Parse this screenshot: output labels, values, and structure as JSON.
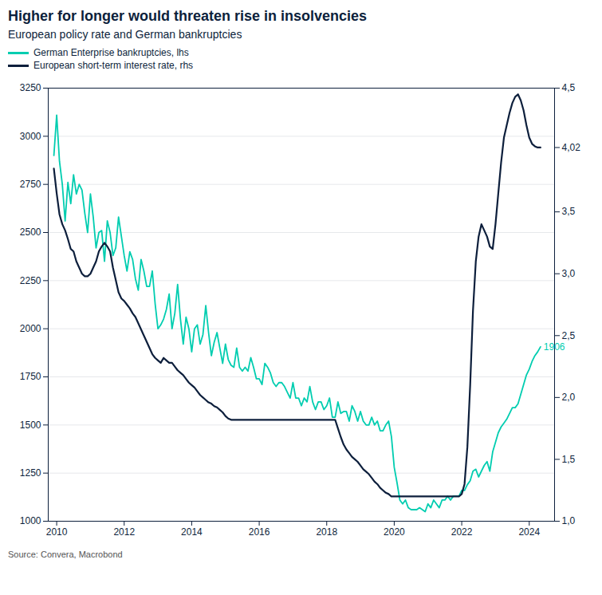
{
  "chart_data": {
    "type": "line",
    "title": "Higher for longer would threaten rise in insolvencies",
    "subtitle": "European policy rate and German bankruptcies",
    "source": "Source: Convera, Macrobond",
    "x": [
      2009.917,
      2010.0,
      2010.083,
      2010.167,
      2010.25,
      2010.333,
      2010.417,
      2010.5,
      2010.583,
      2010.667,
      2010.75,
      2010.833,
      2010.917,
      2011.0,
      2011.083,
      2011.167,
      2011.25,
      2011.333,
      2011.417,
      2011.5,
      2011.583,
      2011.667,
      2011.75,
      2011.833,
      2011.917,
      2012.0,
      2012.083,
      2012.167,
      2012.25,
      2012.333,
      2012.417,
      2012.5,
      2012.583,
      2012.667,
      2012.75,
      2012.833,
      2012.917,
      2013.0,
      2013.083,
      2013.167,
      2013.25,
      2013.333,
      2013.417,
      2013.5,
      2013.583,
      2013.667,
      2013.75,
      2013.833,
      2013.917,
      2014.0,
      2014.083,
      2014.167,
      2014.25,
      2014.333,
      2014.417,
      2014.5,
      2014.583,
      2014.667,
      2014.75,
      2014.833,
      2014.917,
      2015.0,
      2015.083,
      2015.167,
      2015.25,
      2015.333,
      2015.417,
      2015.5,
      2015.583,
      2015.667,
      2015.75,
      2015.833,
      2015.917,
      2016.0,
      2016.083,
      2016.167,
      2016.25,
      2016.333,
      2016.417,
      2016.5,
      2016.583,
      2016.667,
      2016.75,
      2016.833,
      2016.917,
      2017.0,
      2017.083,
      2017.167,
      2017.25,
      2017.333,
      2017.417,
      2017.5,
      2017.583,
      2017.667,
      2017.75,
      2017.833,
      2017.917,
      2018.0,
      2018.083,
      2018.167,
      2018.25,
      2018.333,
      2018.417,
      2018.5,
      2018.583,
      2018.667,
      2018.75,
      2018.833,
      2018.917,
      2019.0,
      2019.083,
      2019.167,
      2019.25,
      2019.333,
      2019.417,
      2019.5,
      2019.583,
      2019.667,
      2019.75,
      2019.833,
      2019.917,
      2020.0,
      2020.083,
      2020.167,
      2020.25,
      2020.333,
      2020.417,
      2020.5,
      2020.583,
      2020.667,
      2020.75,
      2020.833,
      2020.917,
      2021.0,
      2021.083,
      2021.167,
      2021.25,
      2021.333,
      2021.417,
      2021.5,
      2021.583,
      2021.667,
      2021.75,
      2021.833,
      2021.917,
      2022.0,
      2022.083,
      2022.167,
      2022.25,
      2022.333,
      2022.417,
      2022.5,
      2022.583,
      2022.667,
      2022.75,
      2022.833,
      2022.917,
      2023.0,
      2023.083,
      2023.167,
      2023.25,
      2023.333,
      2023.417,
      2023.5,
      2023.583,
      2023.667,
      2023.75,
      2023.833,
      2023.917,
      2024.0,
      2024.083,
      2024.167,
      2024.25,
      2024.333
    ],
    "series": [
      {
        "name": "German Enterprise bankruptcies, lhs",
        "color": "#00CDB0",
        "values": [
          2900,
          3110,
          2870,
          2750,
          2560,
          2760,
          2650,
          2800,
          2700,
          2750,
          2720,
          2600,
          2500,
          2700,
          2580,
          2420,
          2500,
          2510,
          2350,
          2560,
          2500,
          2380,
          2420,
          2580,
          2480,
          2380,
          2300,
          2400,
          2360,
          2260,
          2200,
          2360,
          2300,
          2220,
          2220,
          2300,
          2130,
          2000,
          2020,
          2050,
          2100,
          2180,
          2000,
          2080,
          2230,
          2050,
          1920,
          2060,
          2000,
          1880,
          2000,
          2020,
          1920,
          1970,
          2120,
          1980,
          1860,
          1930,
          1980,
          1900,
          1820,
          1920,
          1840,
          1810,
          1800,
          1900,
          1800,
          1780,
          1800,
          1780,
          1850,
          1800,
          1740,
          1740,
          1710,
          1820,
          1800,
          1770,
          1720,
          1700,
          1720,
          1720,
          1700,
          1670,
          1640,
          1720,
          1640,
          1640,
          1600,
          1640,
          1620,
          1700,
          1620,
          1580,
          1620,
          1620,
          1580,
          1600,
          1640,
          1540,
          1540,
          1620,
          1560,
          1570,
          1570,
          1520,
          1600,
          1570,
          1520,
          1570,
          1520,
          1500,
          1500,
          1540,
          1500,
          1520,
          1470,
          1470,
          1500,
          1520,
          1440,
          1280,
          1200,
          1110,
          1090,
          1110,
          1070,
          1060,
          1060,
          1060,
          1070,
          1060,
          1050,
          1090,
          1070,
          1110,
          1090,
          1070,
          1110,
          1110,
          1130,
          1110,
          1130,
          1130,
          1130,
          1160,
          1160,
          1190,
          1210,
          1260,
          1270,
          1230,
          1260,
          1290,
          1310,
          1260,
          1360,
          1410,
          1460,
          1490,
          1510,
          1530,
          1560,
          1590,
          1590,
          1610,
          1660,
          1710,
          1760,
          1790,
          1830,
          1860,
          1880,
          1906
        ]
      },
      {
        "name": "European short-term interest rate, rhs",
        "color": "#0D1F3C",
        "axis": "y2",
        "values": [
          3.85,
          3.65,
          3.48,
          3.4,
          3.35,
          3.28,
          3.2,
          3.18,
          3.1,
          3.05,
          3.0,
          2.98,
          2.98,
          3.0,
          3.05,
          3.1,
          3.18,
          3.22,
          3.25,
          3.22,
          3.18,
          3.05,
          2.95,
          2.85,
          2.8,
          2.78,
          2.75,
          2.72,
          2.68,
          2.65,
          2.6,
          2.55,
          2.5,
          2.45,
          2.4,
          2.35,
          2.32,
          2.3,
          2.28,
          2.32,
          2.3,
          2.28,
          2.28,
          2.25,
          2.22,
          2.2,
          2.18,
          2.15,
          2.12,
          2.1,
          2.08,
          2.05,
          2.02,
          2.0,
          1.98,
          1.96,
          1.95,
          1.93,
          1.92,
          1.9,
          1.88,
          1.85,
          1.83,
          1.82,
          1.82,
          1.82,
          1.82,
          1.82,
          1.82,
          1.82,
          1.82,
          1.82,
          1.82,
          1.82,
          1.82,
          1.82,
          1.82,
          1.82,
          1.82,
          1.82,
          1.82,
          1.82,
          1.82,
          1.82,
          1.82,
          1.82,
          1.82,
          1.82,
          1.82,
          1.82,
          1.82,
          1.82,
          1.82,
          1.82,
          1.82,
          1.82,
          1.82,
          1.82,
          1.82,
          1.82,
          1.82,
          1.75,
          1.68,
          1.62,
          1.58,
          1.55,
          1.52,
          1.5,
          1.48,
          1.45,
          1.42,
          1.4,
          1.38,
          1.35,
          1.32,
          1.3,
          1.27,
          1.25,
          1.23,
          1.22,
          1.2,
          1.2,
          1.2,
          1.2,
          1.2,
          1.2,
          1.2,
          1.2,
          1.2,
          1.2,
          1.2,
          1.2,
          1.2,
          1.2,
          1.2,
          1.2,
          1.2,
          1.2,
          1.2,
          1.2,
          1.2,
          1.2,
          1.2,
          1.2,
          1.2,
          1.22,
          1.3,
          1.6,
          2.1,
          2.7,
          3.1,
          3.3,
          3.4,
          3.35,
          3.3,
          3.22,
          3.2,
          3.4,
          3.65,
          3.9,
          4.1,
          4.2,
          4.3,
          4.38,
          4.43,
          4.45,
          4.4,
          4.32,
          4.2,
          4.1,
          4.05,
          4.03,
          4.02,
          4.02
        ]
      }
    ],
    "xlim": [
      2009.75,
      2024.75
    ],
    "xticks": [
      2010,
      2012,
      2014,
      2016,
      2018,
      2020,
      2022,
      2024
    ],
    "ylim": [
      1000,
      3250
    ],
    "yticks": [
      1000,
      1250,
      1500,
      1750,
      2000,
      2250,
      2500,
      2750,
      3000,
      3250
    ],
    "y2lim": [
      1.0,
      4.5
    ],
    "y2ticks": [
      {
        "value": 1.0,
        "label": "1,0"
      },
      {
        "value": 1.5,
        "label": "1,5"
      },
      {
        "value": 2.0,
        "label": "2,0"
      },
      {
        "value": 2.5,
        "label": "2,5"
      },
      {
        "value": 3.0,
        "label": "3,0"
      },
      {
        "value": 3.5,
        "label": "3,5"
      },
      {
        "value": 4.02,
        "label": "4,02"
      },
      {
        "value": 4.5,
        "label": "4,5"
      }
    ],
    "grid": true,
    "annotations": [
      {
        "text": "1906",
        "x": 2024.333,
        "y": 1906,
        "color": "#00CDB0"
      }
    ]
  }
}
